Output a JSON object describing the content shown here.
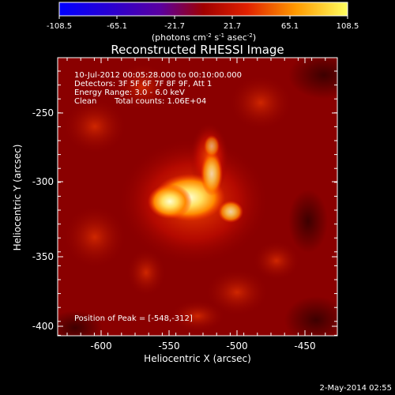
{
  "colorbar": {
    "ticks": [
      "-108.5",
      "-65.1",
      "-21.7",
      "21.7",
      "65.1",
      "108.5"
    ],
    "unit_main": "(photons cm",
    "unit_exp1": "-2",
    "unit_mid": " s",
    "unit_exp2": "-1",
    "unit_mid2": " asec",
    "unit_exp3": "-2",
    "unit_end": ")"
  },
  "title": "Reconstructed RHESSI Image",
  "info": {
    "time_range": "10-Jul-2012 00:05:28.000 to 00:10:00.000",
    "detectors": "Detectors: 3F 5F 6F 7F 8F 9F, Att 1",
    "energy": "Energy Range: 3.0 - 6.0 keV",
    "method": "Clean",
    "counts": "Total counts: 1.06E+04"
  },
  "peak": "Position of Peak = [-548,-312]",
  "axes": {
    "xlabel": "Heliocentric X (arcsec)",
    "ylabel": "Heliocentric Y (arcsec)",
    "xticks": [
      "-600",
      "-550",
      "-500",
      "-450"
    ],
    "yticks": [
      "-250",
      "-300",
      "-350",
      "-400"
    ]
  },
  "footer_date": "2-May-2014 02:55",
  "colors": {
    "background": "#000000",
    "map_base": "#8a0000",
    "map_bright": "#fff0a0"
  }
}
